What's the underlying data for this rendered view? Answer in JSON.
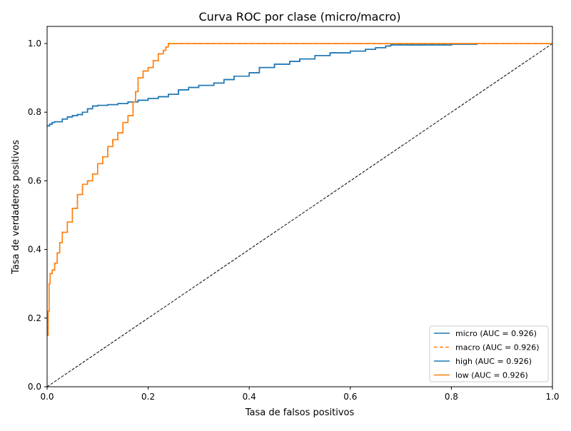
{
  "chart_data": {
    "type": "line",
    "title": "Curva ROC por clase (micro/macro)",
    "xlabel": "Tasa de falsos positivos",
    "ylabel": "Tasa de verdaderos positivos",
    "xlim": [
      0.0,
      1.0
    ],
    "ylim": [
      0.0,
      1.05
    ],
    "x_ticks": [
      "0.0",
      "0.2",
      "0.4",
      "0.6",
      "0.8",
      "1.0"
    ],
    "y_ticks": [
      "0.0",
      "0.2",
      "0.4",
      "0.6",
      "0.8",
      "1.0"
    ],
    "grid": false,
    "legend_position": "bottom-right",
    "series": [
      {
        "name": "micro (AUC = 0.926)",
        "color": "#1f77b4",
        "style": "solid",
        "x": [
          0.0,
          0.005,
          0.01,
          0.015,
          0.03,
          0.03,
          0.04,
          0.05,
          0.06,
          0.07,
          0.08,
          0.09,
          0.1,
          0.12,
          0.14,
          0.16,
          0.18,
          0.2,
          0.22,
          0.24,
          0.26,
          0.28,
          0.3,
          0.33,
          0.35,
          0.37,
          0.4,
          0.42,
          0.45,
          0.48,
          0.5,
          0.53,
          0.56,
          0.6,
          0.63,
          0.65,
          0.67,
          0.68,
          0.8,
          0.85
        ],
        "y": [
          0.76,
          0.765,
          0.77,
          0.772,
          0.775,
          0.78,
          0.786,
          0.79,
          0.793,
          0.8,
          0.81,
          0.818,
          0.82,
          0.822,
          0.825,
          0.83,
          0.835,
          0.84,
          0.845,
          0.852,
          0.865,
          0.872,
          0.878,
          0.885,
          0.895,
          0.905,
          0.915,
          0.93,
          0.94,
          0.948,
          0.955,
          0.965,
          0.973,
          0.978,
          0.983,
          0.988,
          0.993,
          0.996,
          0.998,
          1.0
        ]
      },
      {
        "name": "macro (AUC = 0.926)",
        "color": "#ff7f0e",
        "style": "dashed",
        "x": [
          0.0,
          0.002,
          0.004,
          0.006,
          0.01,
          0.015,
          0.02,
          0.025,
          0.03,
          0.04,
          0.05,
          0.06,
          0.07,
          0.08,
          0.09,
          0.1,
          0.11,
          0.12,
          0.13,
          0.14,
          0.15,
          0.16,
          0.17,
          0.175,
          0.18,
          0.19,
          0.2,
          0.21,
          0.22,
          0.23,
          0.235,
          0.24,
          0.3,
          0.5,
          0.7,
          1.0
        ],
        "y": [
          0.15,
          0.22,
          0.3,
          0.33,
          0.34,
          0.36,
          0.39,
          0.42,
          0.45,
          0.48,
          0.52,
          0.56,
          0.59,
          0.6,
          0.62,
          0.65,
          0.67,
          0.7,
          0.72,
          0.74,
          0.77,
          0.79,
          0.83,
          0.86,
          0.9,
          0.92,
          0.93,
          0.95,
          0.97,
          0.98,
          0.99,
          1.0,
          1.0,
          1.0,
          1.0,
          1.0
        ]
      },
      {
        "name": "high (AUC = 0.926)",
        "color": "#1f77b4",
        "style": "solid",
        "x": [
          0.0,
          0.005,
          0.01,
          0.015,
          0.03,
          0.03,
          0.04,
          0.05,
          0.06,
          0.07,
          0.08,
          0.09,
          0.1,
          0.12,
          0.14,
          0.16,
          0.18,
          0.2,
          0.22,
          0.24,
          0.26,
          0.28,
          0.3,
          0.33,
          0.35,
          0.37,
          0.4,
          0.42,
          0.45,
          0.48,
          0.5,
          0.53,
          0.56,
          0.6,
          0.63,
          0.65,
          0.67,
          0.68,
          0.8,
          0.85
        ],
        "y": [
          0.76,
          0.765,
          0.77,
          0.772,
          0.775,
          0.78,
          0.786,
          0.79,
          0.793,
          0.8,
          0.81,
          0.818,
          0.82,
          0.822,
          0.825,
          0.83,
          0.835,
          0.84,
          0.845,
          0.852,
          0.865,
          0.872,
          0.878,
          0.885,
          0.895,
          0.905,
          0.915,
          0.93,
          0.94,
          0.948,
          0.955,
          0.965,
          0.973,
          0.978,
          0.983,
          0.988,
          0.993,
          0.996,
          0.998,
          1.0
        ]
      },
      {
        "name": "low (AUC = 0.926)",
        "color": "#ff7f0e",
        "style": "solid",
        "x": [
          0.0,
          0.002,
          0.004,
          0.006,
          0.01,
          0.015,
          0.02,
          0.025,
          0.03,
          0.04,
          0.05,
          0.06,
          0.07,
          0.08,
          0.09,
          0.1,
          0.11,
          0.12,
          0.13,
          0.14,
          0.15,
          0.16,
          0.17,
          0.175,
          0.18,
          0.19,
          0.2,
          0.21,
          0.22,
          0.23,
          0.235,
          0.24,
          0.3,
          0.5,
          0.7,
          1.0
        ],
        "y": [
          0.15,
          0.22,
          0.3,
          0.33,
          0.34,
          0.36,
          0.39,
          0.42,
          0.45,
          0.48,
          0.52,
          0.56,
          0.59,
          0.6,
          0.62,
          0.65,
          0.67,
          0.7,
          0.72,
          0.74,
          0.77,
          0.79,
          0.83,
          0.86,
          0.9,
          0.92,
          0.93,
          0.95,
          0.97,
          0.98,
          0.99,
          1.0,
          1.0,
          1.0,
          1.0,
          1.0
        ]
      }
    ],
    "reference_line": {
      "x": [
        0.0,
        1.0
      ],
      "y": [
        0.0,
        1.0
      ],
      "color": "#000000",
      "style": "dashed"
    }
  }
}
